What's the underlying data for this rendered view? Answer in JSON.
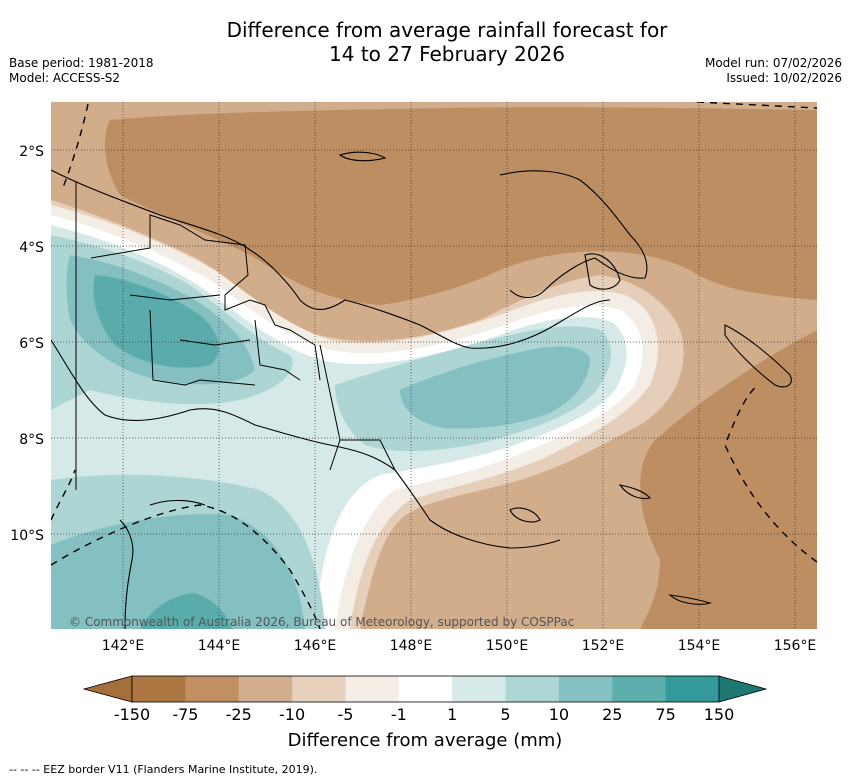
{
  "header": {
    "title_line1": "Difference from average rainfall forecast for",
    "title_line2": "14 to 27 February 2026",
    "base_period": "Base period: 1981-2018",
    "model": "Model: ACCESS-S2",
    "model_run": "Model run: 07/02/2026",
    "issued": "Issued: 10/02/2026"
  },
  "map": {
    "lon_labels": [
      "142°E",
      "144°E",
      "146°E",
      "148°E",
      "150°E",
      "152°E",
      "154°E",
      "156°E"
    ],
    "lat_labels": [
      "2°S",
      "4°S",
      "6°S",
      "8°S",
      "10°S"
    ],
    "copyright": "© Commonwealth of Australia 2026, Bureau of Meteorology, supported by COSPPac",
    "colors": {
      "dry_150": "#a56f3c",
      "dry_75": "#bd8e62",
      "dry_25": "#d1ad8b",
      "dry_10": "#e6cfba",
      "dry_5": "#f3ede6",
      "neutral": "#ffffff",
      "wet_1": "#d5e9e8",
      "wet_5": "#acd5d4",
      "wet_10": "#84c0c1",
      "wet_25": "#5aabab",
      "wet_75": "#2f9693",
      "wet_150": "#1f7772"
    }
  },
  "colorbar": {
    "labels": [
      "-150",
      "-75",
      "-25",
      "-10",
      "-5",
      "-1",
      "1",
      "5",
      "10",
      "25",
      "75",
      "150"
    ],
    "title": "Difference from average (mm)",
    "segment_colors": [
      "#ad7744",
      "#c09063",
      "#d3ae8d",
      "#e7d0bc",
      "#f4eee7",
      "#ffffff",
      "#d6eae9",
      "#aed6d5",
      "#85c1c2",
      "#5caeac",
      "#33999a"
    ],
    "low_extend_color": "#a56f3c",
    "high_extend_color": "#1f7772"
  },
  "footnote": "--  --  -- EEZ border V11 (Flanders Marine Institute, 2019)."
}
